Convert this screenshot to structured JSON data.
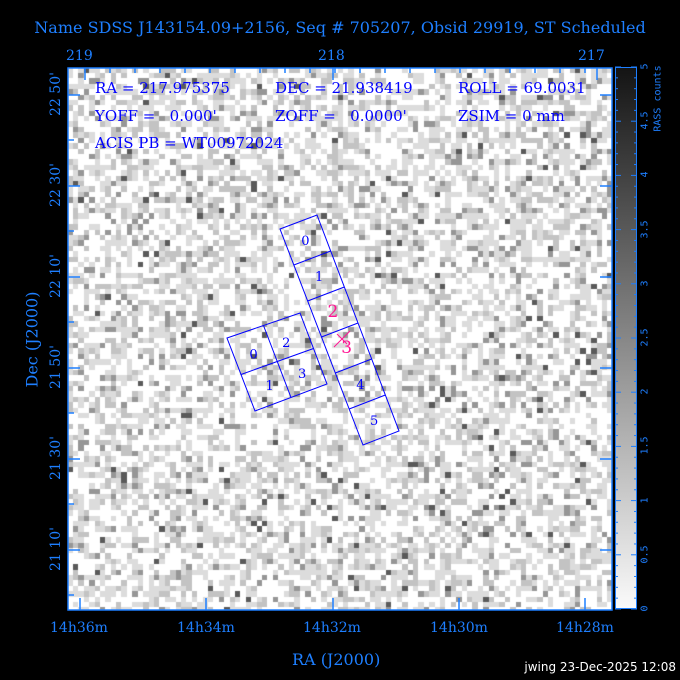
{
  "title": "Name SDSS J143154.09+2156, Seq # 705207, Obsid 29919, ST Scheduled",
  "info": {
    "ra": "RA = 217.975375",
    "dec": "DEC = 21.938419",
    "roll": "ROLL = 69.0031",
    "yoff": "YOFF =   0.000'",
    "zoff": "ZOFF =   0.0000'",
    "zsim": "ZSIM = 0 mm",
    "acis_pb": "ACIS PB = WT00972024"
  },
  "axes": {
    "top_ticks": [
      "219",
      "218",
      "217"
    ],
    "bottom_ticks": [
      "14h36m",
      "14h34m",
      "14h32m",
      "14h30m",
      "14h28m"
    ],
    "left_ticks": [
      "22 50'",
      "22 30'",
      "22 10'",
      "21 50'",
      "21 30'",
      "21 10'"
    ],
    "xlabel": "RA (J2000)",
    "ylabel": "Dec (J2000)"
  },
  "colorbar": {
    "label": "RASS counts",
    "ticks": [
      "0",
      "0.5",
      "1",
      "1.5",
      "2",
      "2.5",
      "3",
      "3.5",
      "4",
      "4.5",
      "5"
    ],
    "range": [
      0,
      5
    ]
  },
  "chips": {
    "i_array": [
      "0",
      "1",
      "2",
      "3"
    ],
    "s_array": [
      "0",
      "1",
      "2",
      "3",
      "4",
      "5"
    ],
    "highlighted": [
      "2",
      "3"
    ],
    "outline_color": "#0000ff",
    "highlight_color": "#ff1493",
    "aimpoint_marker": "x-icon"
  },
  "footer": "jwing 23-Dec-2025 12:08"
}
